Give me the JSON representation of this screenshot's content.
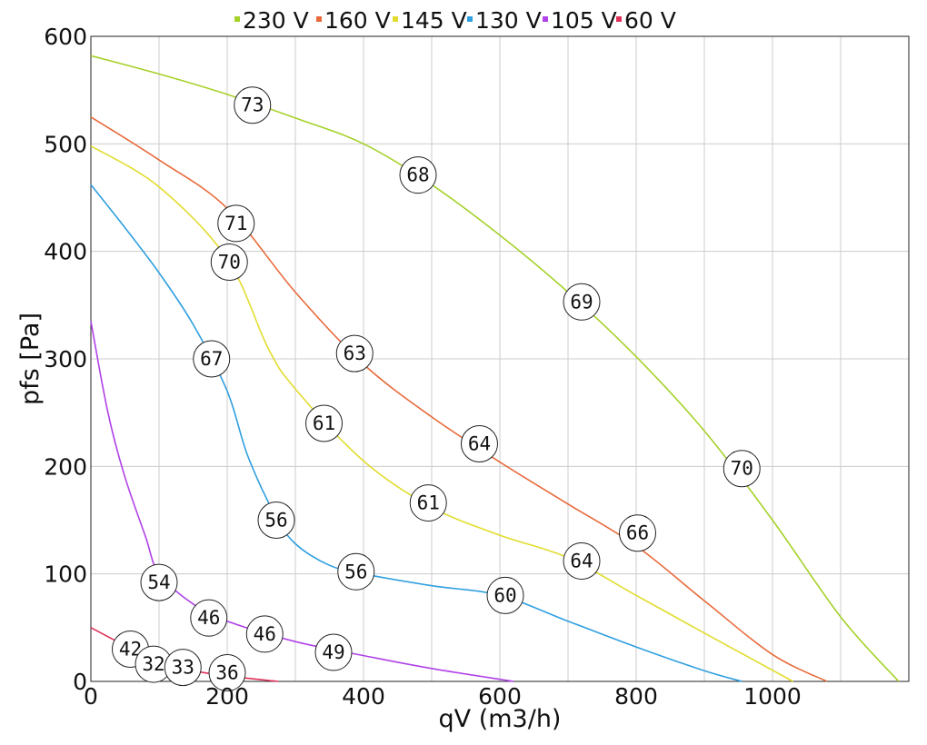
{
  "chart_data": {
    "type": "line",
    "xlabel": "qV (m3/h)",
    "ylabel": "pfs [Pa]",
    "xlim": [
      0,
      1200
    ],
    "ylim": [
      0,
      600
    ],
    "xticks": [
      0,
      200,
      400,
      600,
      800,
      1000
    ],
    "yticks": [
      0,
      100,
      200,
      300,
      400,
      500,
      600
    ],
    "grid": true,
    "legend_position": "top",
    "series": [
      {
        "name": "230 V",
        "color": "#a6d12a",
        "points": [
          [
            0,
            582
          ],
          [
            100,
            565
          ],
          [
            200,
            546
          ],
          [
            300,
            524
          ],
          [
            400,
            500
          ],
          [
            500,
            462
          ],
          [
            600,
            415
          ],
          [
            700,
            362
          ],
          [
            800,
            302
          ],
          [
            900,
            233
          ],
          [
            1000,
            150
          ],
          [
            1100,
            60
          ],
          [
            1185,
            0
          ]
        ],
        "markers": [
          {
            "x": 237,
            "y": 536,
            "label": "73"
          },
          {
            "x": 480,
            "y": 471,
            "label": "68"
          },
          {
            "x": 720,
            "y": 353,
            "label": "69"
          },
          {
            "x": 955,
            "y": 198,
            "label": "70"
          }
        ]
      },
      {
        "name": "160 V",
        "color": "#e86a3a",
        "points": [
          [
            0,
            525
          ],
          [
            100,
            485
          ],
          [
            200,
            440
          ],
          [
            300,
            362
          ],
          [
            400,
            295
          ],
          [
            500,
            246
          ],
          [
            600,
            204
          ],
          [
            700,
            165
          ],
          [
            800,
            126
          ],
          [
            900,
            75
          ],
          [
            1000,
            25
          ],
          [
            1080,
            0
          ]
        ],
        "markers": [
          {
            "x": 213,
            "y": 426,
            "label": "71"
          },
          {
            "x": 387,
            "y": 305,
            "label": "63"
          },
          {
            "x": 570,
            "y": 221,
            "label": "64"
          },
          {
            "x": 802,
            "y": 138,
            "label": "66"
          }
        ]
      },
      {
        "name": "145 V",
        "color": "#e2dc2e",
        "points": [
          [
            0,
            498
          ],
          [
            100,
            460
          ],
          [
            200,
            393
          ],
          [
            260,
            310
          ],
          [
            300,
            272
          ],
          [
            400,
            205
          ],
          [
            500,
            162
          ],
          [
            600,
            136
          ],
          [
            700,
            115
          ],
          [
            800,
            80
          ],
          [
            900,
            45
          ],
          [
            1030,
            0
          ]
        ],
        "markers": [
          {
            "x": 203,
            "y": 390,
            "label": "70"
          },
          {
            "x": 342,
            "y": 240,
            "label": "61"
          },
          {
            "x": 495,
            "y": 166,
            "label": "61"
          },
          {
            "x": 720,
            "y": 112,
            "label": "64"
          }
        ]
      },
      {
        "name": "130 V",
        "color": "#2f9fe0",
        "points": [
          [
            0,
            462
          ],
          [
            50,
            422
          ],
          [
            100,
            380
          ],
          [
            150,
            332
          ],
          [
            200,
            270
          ],
          [
            230,
            210
          ],
          [
            270,
            155
          ],
          [
            300,
            128
          ],
          [
            350,
            108
          ],
          [
            400,
            100
          ],
          [
            500,
            89
          ],
          [
            600,
            80
          ],
          [
            700,
            56
          ],
          [
            800,
            32
          ],
          [
            900,
            10
          ],
          [
            955,
            0
          ]
        ],
        "markers": [
          {
            "x": 177,
            "y": 300,
            "label": "67"
          },
          {
            "x": 272,
            "y": 150,
            "label": "56"
          },
          {
            "x": 389,
            "y": 102,
            "label": "56"
          },
          {
            "x": 608,
            "y": 80,
            "label": "60"
          }
        ]
      },
      {
        "name": "105 V",
        "color": "#b042e8",
        "points": [
          [
            0,
            335
          ],
          [
            25,
            250
          ],
          [
            50,
            190
          ],
          [
            80,
            135
          ],
          [
            100,
            100
          ],
          [
            150,
            72
          ],
          [
            200,
            56
          ],
          [
            300,
            37
          ],
          [
            400,
            24
          ],
          [
            500,
            12
          ],
          [
            620,
            0
          ]
        ],
        "markers": [
          {
            "x": 100,
            "y": 92,
            "label": "54"
          },
          {
            "x": 173,
            "y": 59,
            "label": "46"
          },
          {
            "x": 255,
            "y": 44,
            "label": "46"
          },
          {
            "x": 356,
            "y": 27,
            "label": "49"
          }
        ]
      },
      {
        "name": "60 V",
        "color": "#e0305a",
        "points": [
          [
            0,
            50
          ],
          [
            60,
            30
          ],
          [
            100,
            18
          ],
          [
            150,
            10
          ],
          [
            200,
            5
          ],
          [
            275,
            0
          ]
        ],
        "markers": [
          {
            "x": 58,
            "y": 30,
            "label": "42"
          },
          {
            "x": 92,
            "y": 16,
            "label": "32"
          },
          {
            "x": 135,
            "y": 13,
            "label": "33"
          },
          {
            "x": 200,
            "y": 8,
            "label": "36"
          }
        ]
      }
    ]
  }
}
